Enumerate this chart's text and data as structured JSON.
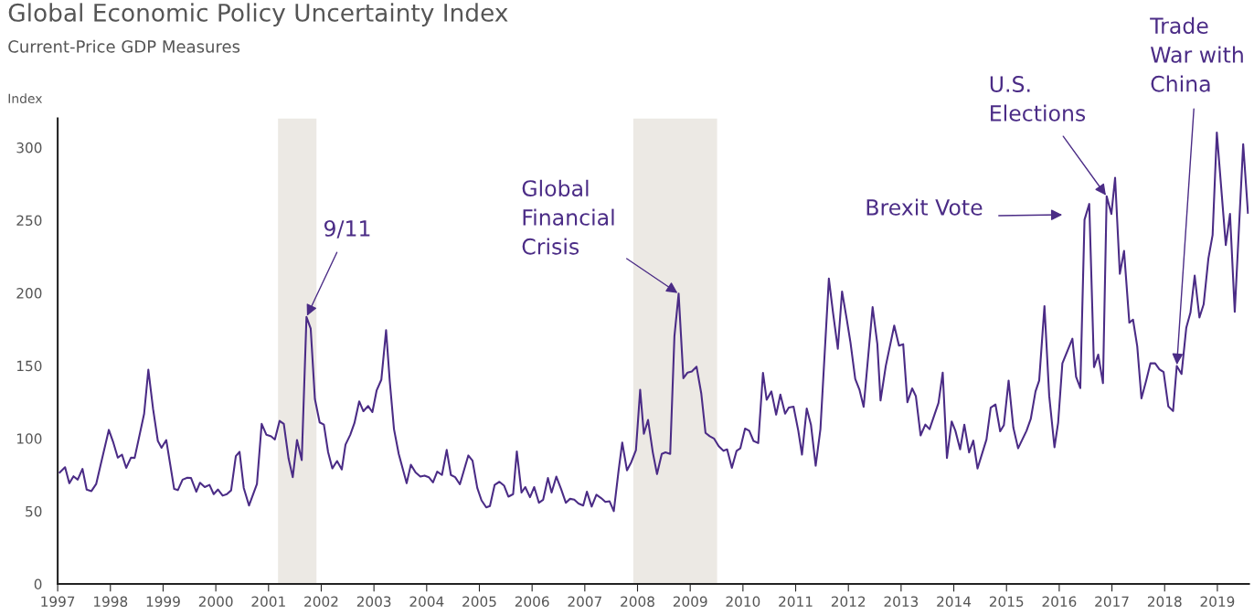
{
  "chart_data": {
    "type": "line",
    "title": "Global Economic Policy Uncertainty Index",
    "subtitle": "Current-Price GDP Measures",
    "ylabel": "Index",
    "xlim": [
      1997,
      2019.6
    ],
    "xticks": [
      1997,
      1998,
      1999,
      2000,
      2001,
      2002,
      2003,
      2004,
      2005,
      2006,
      2007,
      2008,
      2009,
      2010,
      2011,
      2012,
      2013,
      2014,
      2015,
      2016,
      2017,
      2018,
      2019
    ],
    "ylim": [
      0,
      320
    ],
    "yticks": [
      0,
      50,
      100,
      150,
      200,
      250,
      300
    ],
    "grid": false,
    "marker": "none",
    "line_style": "solid",
    "bands": [
      {
        "axis": "x",
        "from": 2001.18,
        "to": 2001.91,
        "color": "#ece9e4"
      },
      {
        "axis": "x",
        "from": 2007.92,
        "to": 2009.51,
        "color": "#ece9e4"
      }
    ],
    "annotations": [
      {
        "text": "9/11",
        "x": 2001.72,
        "y": 183.5
      },
      {
        "text": "Global\nFinancial\nCrisis",
        "x": 2008.78,
        "y": 199.5
      },
      "Brexit Vote",
      {
        "text": "U.S.\nElections",
        "x": 2016.9,
        "y": 266.4
      },
      {
        "text": "Trade\nWar with\nChina",
        "x": 2018.23,
        "y": 149.8
      }
    ],
    "series": [
      {
        "color": "#4b2c86",
        "x": [
          1997.04,
          1997.14,
          1997.22,
          1997.3,
          1997.38,
          1997.47,
          1997.55,
          1997.64,
          1997.73,
          1997.97,
          1998.05,
          1998.14,
          1998.22,
          1998.3,
          1998.39,
          1998.46,
          1998.64,
          1998.72,
          1998.81,
          1998.9,
          1998.97,
          1999.06,
          1999.21,
          1999.28,
          1999.37,
          1999.46,
          1999.53,
          1999.63,
          1999.7,
          1999.79,
          1999.88,
          1999.96,
          2000.04,
          2000.13,
          2000.21,
          2000.29,
          2000.38,
          2000.45,
          2000.53,
          2000.63,
          2000.78,
          2000.87,
          2000.96,
          2001.05,
          2001.12,
          2001.21,
          2001.29,
          2001.38,
          2001.46,
          2001.54,
          2001.63,
          2001.72,
          2001.8,
          2001.88,
          2001.97,
          2002.05,
          2002.13,
          2002.21,
          2002.3,
          2002.39,
          2002.46,
          2002.55,
          2002.63,
          2002.72,
          2002.8,
          2002.89,
          2002.97,
          2003.05,
          2003.14,
          2003.23,
          2003.3,
          2003.38,
          2003.47,
          2003.62,
          2003.7,
          2003.79,
          2003.88,
          2003.96,
          2004.04,
          2004.12,
          2004.2,
          2004.29,
          2004.38,
          2004.46,
          2004.54,
          2004.63,
          2004.79,
          2004.87,
          2004.96,
          2005.04,
          2005.13,
          2005.2,
          2005.29,
          2005.38,
          2005.47,
          2005.55,
          2005.64,
          2005.71,
          2005.8,
          2005.87,
          2005.96,
          2006.04,
          2006.13,
          2006.21,
          2006.3,
          2006.37,
          2006.46,
          2006.55,
          2006.64,
          2006.72,
          2006.8,
          2006.88,
          2006.97,
          2007.04,
          2007.13,
          2007.22,
          2007.31,
          2007.39,
          2007.47,
          2007.55,
          2007.64,
          2007.71,
          2007.8,
          2007.88,
          2007.97,
          2008.05,
          2008.12,
          2008.2,
          2008.29,
          2008.37,
          2008.46,
          2008.53,
          2008.62,
          2008.7,
          2008.78,
          2008.87,
          2008.95,
          2009.03,
          2009.12,
          2009.21,
          2009.29,
          2009.37,
          2009.45,
          2009.54,
          2009.63,
          2009.7,
          2009.79,
          2009.88,
          2009.95,
          2010.04,
          2010.12,
          2010.2,
          2010.29,
          2010.38,
          2010.45,
          2010.54,
          2010.63,
          2010.71,
          2010.8,
          2010.87,
          2010.96,
          2011.05,
          2011.12,
          2011.21,
          2011.29,
          2011.38,
          2011.47,
          2011.63,
          2011.71,
          2011.8,
          2011.88,
          2011.97,
          2012.04,
          2012.13,
          2012.21,
          2012.29,
          2012.46,
          2012.55,
          2012.61,
          2012.71,
          2012.87,
          2012.96,
          2013.04,
          2013.12,
          2013.21,
          2013.28,
          2013.37,
          2013.46,
          2013.54,
          2013.71,
          2013.79,
          2013.87,
          2013.96,
          2014.03,
          2014.12,
          2014.2,
          2014.29,
          2014.37,
          2014.45,
          2014.62,
          2014.7,
          2014.79,
          2014.88,
          2014.95,
          2015.04,
          2015.13,
          2015.22,
          2015.38,
          2015.46,
          2015.55,
          2015.62,
          2015.72,
          2015.81,
          2015.91,
          2015.98,
          2016.06,
          2016.25,
          2016.32,
          2016.4,
          2016.48,
          2016.57,
          2016.66,
          2016.74,
          2016.83,
          2016.9,
          2016.99,
          2017.06,
          2017.15,
          2017.23,
          2017.33,
          2017.4,
          2017.48,
          2017.56,
          2017.65,
          2017.73,
          2017.82,
          2017.9,
          2017.98,
          2018.07,
          2018.16,
          2018.23,
          2018.32,
          2018.41,
          2018.49,
          2018.57,
          2018.66,
          2018.74,
          2018.83,
          2018.91,
          2018.99,
          2019.16,
          2019.24,
          2019.33,
          2019.49,
          2019.58
        ],
        "values": [
          76.6,
          80.2,
          69.2,
          74.0,
          71.7,
          79.1,
          64.9,
          63.8,
          68.7,
          105.9,
          97.8,
          86.8,
          88.9,
          79.8,
          86.8,
          86.6,
          117.0,
          147.2,
          120.2,
          98.3,
          93.6,
          98.9,
          65.3,
          64.5,
          71.7,
          73.0,
          72.8,
          63.4,
          69.6,
          66.6,
          68.1,
          61.7,
          64.9,
          60.7,
          61.7,
          64.3,
          87.9,
          90.8,
          66.0,
          53.9,
          68.7,
          110.0,
          102.5,
          101.5,
          99.3,
          112.1,
          110.0,
          86.2,
          73.4,
          98.9,
          85.1,
          183.5,
          175.5,
          127.0,
          111.0,
          109.5,
          90.6,
          79.4,
          84.5,
          78.7,
          95.7,
          102.5,
          110.6,
          125.5,
          118.7,
          122.3,
          118.1,
          132.9,
          140.4,
          174.4,
          139.3,
          106.4,
          89.4,
          69.2,
          81.9,
          76.6,
          73.8,
          74.5,
          73.4,
          69.8,
          77.2,
          74.9,
          92.1,
          74.9,
          73.4,
          68.5,
          88.3,
          84.7,
          66.0,
          57.5,
          52.6,
          53.6,
          68.1,
          70.2,
          67.5,
          60.0,
          61.7,
          91.1,
          62.8,
          66.6,
          59.6,
          66.6,
          55.8,
          57.9,
          72.8,
          62.8,
          73.8,
          65.3,
          55.8,
          58.5,
          57.9,
          55.3,
          53.9,
          63.4,
          53.2,
          61.3,
          59.0,
          56.4,
          56.8,
          50.0,
          77.7,
          97.2,
          78.1,
          83.6,
          91.9,
          133.4,
          103.2,
          112.7,
          90.4,
          75.5,
          89.4,
          90.4,
          89.4,
          170.1,
          199.5,
          141.4,
          145.3,
          146.1,
          149.3,
          130.8,
          103.8,
          101.5,
          100.0,
          94.7,
          91.5,
          92.5,
          79.8,
          91.5,
          93.2,
          106.8,
          105.3,
          98.3,
          96.8,
          145.1,
          126.6,
          132.3,
          116.4,
          130.2,
          117.0,
          121.2,
          121.9,
          105.3,
          88.9,
          120.6,
          109.5,
          81.3,
          106.4,
          209.9,
          186.1,
          161.6,
          201.0,
          181.8,
          165.9,
          141.0,
          133.6,
          121.7,
          190.3,
          164.8,
          126.1,
          149.9,
          177.6,
          163.8,
          164.8,
          124.9,
          134.4,
          129.1,
          102.1,
          109.5,
          106.4,
          124.4,
          145.3,
          86.6,
          111.7,
          105.3,
          92.5,
          109.5,
          90.4,
          98.5,
          79.4,
          99.3,
          121.2,
          123.4,
          104.9,
          109.1,
          139.8,
          107.4,
          93.2,
          105.3,
          113.4,
          132.3,
          139.8,
          191.0,
          129.3,
          93.9,
          111.0,
          151.6,
          168.6,
          142.4,
          134.6,
          250.4,
          261.2,
          149.0,
          157.6,
          138.0,
          266.4,
          254.3,
          279.2,
          213.2,
          228.9,
          179.6,
          181.7,
          163.4,
          127.5,
          139.8,
          151.6,
          151.6,
          147.6,
          145.6,
          122.0,
          118.8,
          149.8,
          144.3,
          176.0,
          186.5,
          211.9,
          183.1,
          192.2,
          223.7,
          239.9,
          310.2,
          232.9,
          254.3,
          187.0,
          302.3,
          255.1
        ]
      }
    ]
  }
}
